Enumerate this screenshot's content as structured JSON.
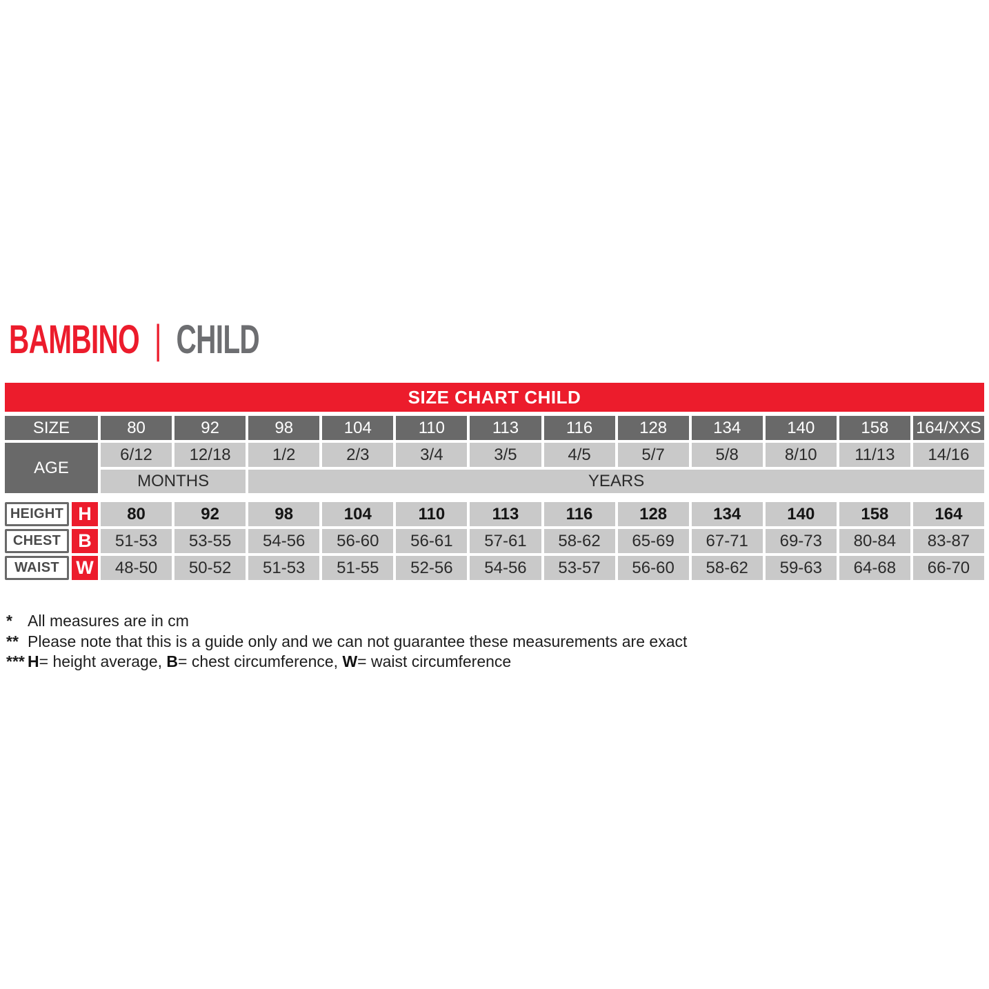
{
  "title": {
    "primary": "BAMBINO",
    "separator": "|",
    "secondary": "CHILD"
  },
  "banner": {
    "text": "SIZE CHART CHILD"
  },
  "colors": {
    "accent_red": "#ec1c2c",
    "header_dark_gray": "#696969",
    "cell_light_gray": "#c9c9c9",
    "title_secondary_gray": "#6d6e71"
  },
  "table": {
    "size_label": "SIZE",
    "age_label": "AGE",
    "months_label": "MONTHS",
    "years_label": "YEARS",
    "sizes": [
      "80",
      "92",
      "98",
      "104",
      "110",
      "113",
      "116",
      "128",
      "134",
      "140",
      "158",
      "164/XXS"
    ],
    "ages": [
      "6/12",
      "12/18",
      "1/2",
      "2/3",
      "3/4",
      "3/5",
      "4/5",
      "5/7",
      "5/8",
      "8/10",
      "11/13",
      "14/16"
    ],
    "rows": [
      {
        "label": "HEIGHT",
        "letter": "H",
        "values": [
          "80",
          "92",
          "98",
          "104",
          "110",
          "113",
          "116",
          "128",
          "134",
          "140",
          "158",
          "164"
        ]
      },
      {
        "label": "CHEST",
        "letter": "B",
        "values": [
          "51-53",
          "53-55",
          "54-56",
          "56-60",
          "56-61",
          "57-61",
          "58-62",
          "65-69",
          "67-71",
          "69-73",
          "80-84",
          "83-87"
        ]
      },
      {
        "label": "WAIST",
        "letter": "W",
        "values": [
          "48-50",
          "50-52",
          "51-53",
          "51-55",
          "52-56",
          "54-56",
          "53-57",
          "56-60",
          "58-62",
          "59-63",
          "64-68",
          "66-70"
        ]
      }
    ]
  },
  "footnotes": [
    {
      "marker": "*",
      "parts": [
        {
          "text": "All measures are in cm"
        }
      ]
    },
    {
      "marker": "**",
      "parts": [
        {
          "text": "Please note that this is a guide only and we can not guarantee these measurements are exact"
        }
      ]
    },
    {
      "marker": "***",
      "parts": [
        {
          "text": "H",
          "bold": true
        },
        {
          "text": "= height average, "
        },
        {
          "text": "B",
          "bold": true
        },
        {
          "text": "= chest circumference, "
        },
        {
          "text": "W",
          "bold": true
        },
        {
          "text": "= waist circumference"
        }
      ]
    }
  ]
}
